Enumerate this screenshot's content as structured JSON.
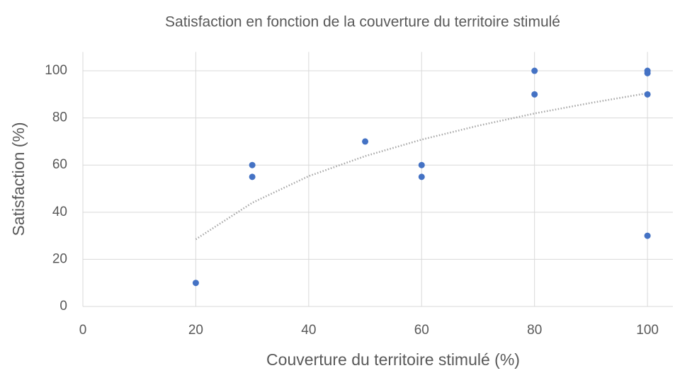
{
  "chart_data": {
    "type": "scatter",
    "title": "Satisfaction en fonction de la couverture du territoire stimulé",
    "x_label": "Couverture du territoire stimulé (%)",
    "y_label": "Satisfaction (%)",
    "series": [
      {
        "color": "#4472c4",
        "x": [
          20,
          30,
          30,
          50,
          60,
          60,
          80,
          80,
          100,
          100,
          100,
          100
        ],
        "values": [
          10,
          60,
          55,
          70,
          60,
          55,
          100,
          90,
          100,
          99,
          90,
          30
        ]
      }
    ],
    "trendline": {
      "color": "#a6a6a6",
      "x": [
        20,
        30,
        40,
        50,
        60,
        70,
        80,
        90,
        100
      ],
      "values": [
        28.5,
        44,
        55.3,
        63.8,
        70.8,
        76.7,
        81.9,
        86.4,
        90.5
      ]
    },
    "xlim": [
      0,
      104.5
    ],
    "ylim": [
      0,
      108
    ],
    "xticks": [
      0,
      20,
      40,
      60,
      80,
      100
    ],
    "yticks": [
      0,
      20,
      40,
      60,
      80,
      100
    ],
    "grid": true
  }
}
